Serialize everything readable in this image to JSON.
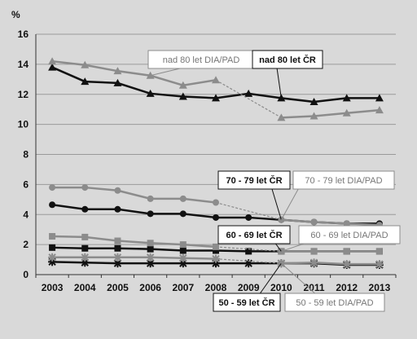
{
  "chart_data": {
    "type": "line",
    "ylabel": "%",
    "ylim": [
      0,
      16
    ],
    "yticks": [
      0,
      2,
      4,
      6,
      8,
      10,
      12,
      14,
      16
    ],
    "categories": [
      "2003",
      "2004",
      "2005",
      "2006",
      "2007",
      "2008",
      "2009",
      "2010",
      "2011",
      "2012",
      "2013"
    ],
    "grid": true,
    "series": [
      {
        "name": "nad 80 let ČR",
        "marker": "triangle",
        "color": "#111111",
        "values": [
          13.8,
          12.85,
          12.75,
          12.05,
          11.85,
          11.75,
          12.05,
          11.75,
          11.5,
          11.75,
          11.75
        ]
      },
      {
        "name": "nad 80 let DIA/PAD",
        "marker": "triangle",
        "color": "#8c8c8c",
        "values": [
          14.2,
          13.95,
          13.55,
          13.25,
          12.6,
          12.95,
          null,
          10.45,
          10.55,
          10.75,
          10.95
        ]
      },
      {
        "name": "70 - 79 let ČR",
        "marker": "circle",
        "color": "#111111",
        "values": [
          4.65,
          4.35,
          4.35,
          4.05,
          4.05,
          3.8,
          3.8,
          3.65,
          3.5,
          3.4,
          3.4
        ]
      },
      {
        "name": "70 - 79 let DIA/PAD",
        "marker": "circle",
        "color": "#8c8c8c",
        "values": [
          5.8,
          5.8,
          5.6,
          5.05,
          5.05,
          4.8,
          null,
          3.65,
          3.5,
          3.4,
          3.3
        ]
      },
      {
        "name": "60 - 69 let ČR",
        "marker": "square",
        "color": "#111111",
        "values": [
          1.8,
          1.75,
          1.75,
          1.7,
          1.6,
          1.6,
          1.55,
          1.55,
          1.55,
          1.55,
          1.55
        ]
      },
      {
        "name": "60 - 69 let DIA/PAD",
        "marker": "square",
        "color": "#8c8c8c",
        "values": [
          2.55,
          2.5,
          2.25,
          2.1,
          2.0,
          1.85,
          null,
          1.55,
          1.55,
          1.55,
          1.55
        ]
      },
      {
        "name": "50 - 59 let ČR",
        "marker": "star",
        "color": "#111111",
        "values": [
          0.85,
          0.8,
          0.75,
          0.75,
          0.75,
          0.75,
          0.75,
          0.75,
          0.75,
          0.65,
          0.65
        ]
      },
      {
        "name": "50 - 59 let DIA/PAD",
        "marker": "star",
        "color": "#8c8c8c",
        "values": [
          1.15,
          1.15,
          1.15,
          1.15,
          1.1,
          1.05,
          null,
          0.75,
          0.8,
          0.7,
          0.7
        ]
      }
    ],
    "annotations": [
      {
        "text": "nad 80 let DIA/PAD",
        "series": 1,
        "x": "2006",
        "style": "gray"
      },
      {
        "text": "nad 80 let ČR",
        "series": 0,
        "x": "2010",
        "style": "black"
      },
      {
        "text": "70 - 79 let ČR",
        "series": 2,
        "x": "2010",
        "style": "black"
      },
      {
        "text": "70 - 79 let DIA/PAD",
        "series": 3,
        "x": "2010",
        "style": "gray"
      },
      {
        "text": "60 - 69 let ČR",
        "series": 4,
        "x": "2010",
        "style": "black"
      },
      {
        "text": "60 - 69 let DIA/PAD",
        "series": 5,
        "x": "2010",
        "style": "gray"
      },
      {
        "text": "50 - 59 let ČR",
        "series": 6,
        "x": "2010",
        "style": "black"
      },
      {
        "text": "50 - 59 let DIA/PAD",
        "series": 7,
        "x": "2010",
        "style": "gray"
      }
    ]
  }
}
